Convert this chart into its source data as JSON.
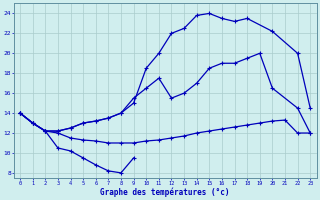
{
  "xlabel": "Graphe des températures (°c)",
  "xlim": [
    -0.5,
    23.5
  ],
  "ylim": [
    7.5,
    25
  ],
  "yticks": [
    8,
    10,
    12,
    14,
    16,
    18,
    20,
    22,
    24
  ],
  "xticks": [
    0,
    1,
    2,
    3,
    4,
    5,
    6,
    7,
    8,
    9,
    10,
    11,
    12,
    13,
    14,
    15,
    16,
    17,
    18,
    19,
    20,
    21,
    22,
    23
  ],
  "background_color": "#d0eeee",
  "grid_color": "#aacccc",
  "line_color": "#0000bb",
  "line1_x": [
    0,
    1,
    2,
    3,
    4,
    5,
    6,
    7,
    8,
    9
  ],
  "line1_y": [
    14.0,
    13.0,
    12.2,
    10.5,
    10.2,
    9.5,
    8.8,
    8.2,
    8.0,
    9.5
  ],
  "line2_x": [
    0,
    1,
    2,
    3,
    4,
    5,
    6,
    7,
    8,
    9,
    10,
    11,
    12,
    13,
    14,
    15,
    16,
    17,
    18,
    19,
    20,
    21,
    22,
    23
  ],
  "line2_y": [
    14.0,
    13.0,
    12.2,
    12.0,
    11.5,
    11.3,
    11.2,
    11.0,
    11.0,
    11.0,
    11.2,
    11.3,
    11.5,
    11.7,
    12.0,
    12.2,
    12.4,
    12.6,
    12.8,
    13.0,
    13.2,
    13.3,
    12.0,
    12.0
  ],
  "line3_x": [
    0,
    1,
    2,
    3,
    4,
    5,
    6,
    7,
    8,
    9,
    10,
    11,
    12,
    13,
    14,
    15,
    16,
    17,
    18,
    19,
    20,
    22,
    23
  ],
  "line3_y": [
    14.0,
    13.0,
    12.2,
    12.2,
    12.5,
    13.0,
    13.2,
    13.5,
    14.0,
    15.5,
    16.5,
    17.5,
    15.5,
    16.0,
    17.0,
    18.5,
    19.0,
    19.0,
    19.5,
    20.0,
    16.5,
    14.5,
    12.0
  ],
  "line4_x": [
    0,
    1,
    2,
    3,
    4,
    5,
    6,
    7,
    8,
    9,
    10,
    11,
    12,
    13,
    14,
    15,
    16,
    17,
    18,
    20,
    22,
    23
  ],
  "line4_y": [
    14.0,
    13.0,
    12.2,
    12.2,
    12.5,
    13.0,
    13.2,
    13.5,
    14.0,
    15.0,
    18.5,
    20.0,
    22.0,
    22.5,
    23.8,
    24.0,
    23.5,
    23.2,
    23.5,
    22.2,
    20.0,
    14.5
  ]
}
